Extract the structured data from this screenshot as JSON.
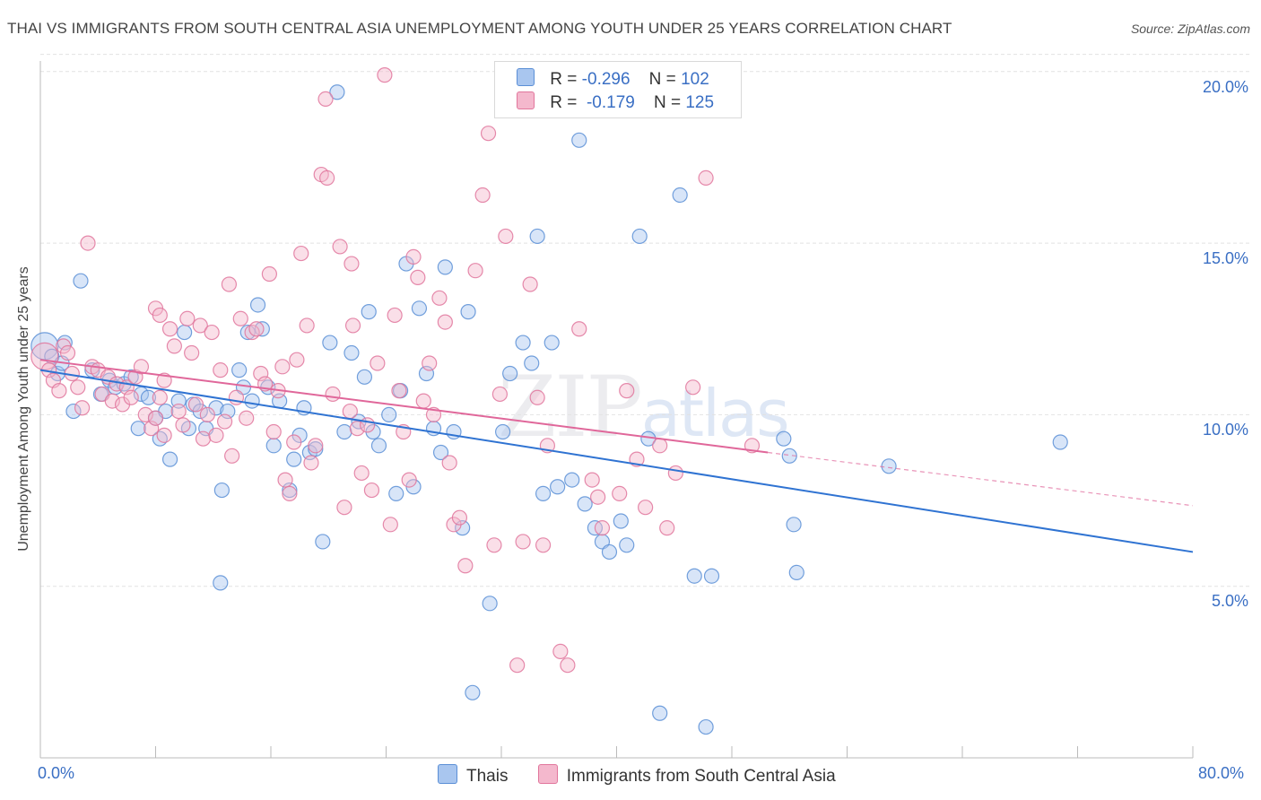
{
  "title": "THAI VS IMMIGRANTS FROM SOUTH CENTRAL ASIA UNEMPLOYMENT AMONG YOUTH UNDER 25 YEARS CORRELATION CHART",
  "source": "Source: ZipAtlas.com",
  "watermark": {
    "zip": "ZIP",
    "atlas": "atlas"
  },
  "colors": {
    "thais": "#5b8fd6",
    "thais_fill": "#a9c6ef",
    "immigrants": "#e1769c",
    "immigrants_fill": "#f4b8cd",
    "axis_text": "#3a6fc4"
  },
  "legend": {
    "rows": [
      {
        "r_label": "R =",
        "r_value": "-0.296",
        "n_label": "N =",
        "n_value": "102"
      },
      {
        "r_label": "R =",
        "r_value": "-0.179",
        "n_label": "N =",
        "n_value": "125"
      }
    ]
  },
  "bottom_legend": [
    "Thais",
    "Immigrants from South Central Asia"
  ],
  "chart_data": {
    "type": "scatter",
    "title": "THAI VS IMMIGRANTS FROM SOUTH CENTRAL ASIA UNEMPLOYMENT AMONG YOUTH UNDER 25 YEARS CORRELATION CHART",
    "xlabel": "",
    "ylabel": "Unemployment Among Youth under 25 years",
    "xlim": [
      0,
      80
    ],
    "ylim": [
      0,
      20.5
    ],
    "x_tick_labels": [
      "0.0%",
      "80.0%"
    ],
    "y_ticks": [
      5,
      10,
      15,
      20
    ],
    "y_tick_labels": [
      "5.0%",
      "10.0%",
      "15.0%",
      "20.0%"
    ],
    "grid": true,
    "series": [
      {
        "name": "Thais",
        "r": -0.296,
        "n": 102,
        "trend": {
          "x": [
            0,
            80
          ],
          "y": [
            11.3,
            6.0
          ],
          "style": "solid"
        },
        "points": [
          [
            0.3,
            12.0
          ],
          [
            0.8,
            11.7
          ],
          [
            1.2,
            11.2
          ],
          [
            1.5,
            11.5
          ],
          [
            1.7,
            12.1
          ],
          [
            2.3,
            10.1
          ],
          [
            2.8,
            13.9
          ],
          [
            3.6,
            11.3
          ],
          [
            4.2,
            10.6
          ],
          [
            4.8,
            11.0
          ],
          [
            5.2,
            10.8
          ],
          [
            5.8,
            10.9
          ],
          [
            6.3,
            11.1
          ],
          [
            6.8,
            9.6
          ],
          [
            7.0,
            10.6
          ],
          [
            7.5,
            10.5
          ],
          [
            8.0,
            9.9
          ],
          [
            8.3,
            9.3
          ],
          [
            8.7,
            10.1
          ],
          [
            9.0,
            8.7
          ],
          [
            9.6,
            10.4
          ],
          [
            10.0,
            12.4
          ],
          [
            10.3,
            9.6
          ],
          [
            10.6,
            10.3
          ],
          [
            11.1,
            10.1
          ],
          [
            11.5,
            9.6
          ],
          [
            12.2,
            10.2
          ],
          [
            12.6,
            7.8
          ],
          [
            12.5,
            5.1
          ],
          [
            13.0,
            10.1
          ],
          [
            13.8,
            11.3
          ],
          [
            14.1,
            10.8
          ],
          [
            14.4,
            12.4
          ],
          [
            14.7,
            10.4
          ],
          [
            15.1,
            13.2
          ],
          [
            15.4,
            12.5
          ],
          [
            15.8,
            10.8
          ],
          [
            16.2,
            9.1
          ],
          [
            16.6,
            10.4
          ],
          [
            17.3,
            7.8
          ],
          [
            17.6,
            8.7
          ],
          [
            18.0,
            9.4
          ],
          [
            18.3,
            10.2
          ],
          [
            18.7,
            8.9
          ],
          [
            19.1,
            9.0
          ],
          [
            19.6,
            6.3
          ],
          [
            20.1,
            12.1
          ],
          [
            20.6,
            19.4
          ],
          [
            21.1,
            9.5
          ],
          [
            21.6,
            11.8
          ],
          [
            22.1,
            9.8
          ],
          [
            22.5,
            11.1
          ],
          [
            22.8,
            13.0
          ],
          [
            23.1,
            9.5
          ],
          [
            23.5,
            9.1
          ],
          [
            24.2,
            10.0
          ],
          [
            24.7,
            7.7
          ],
          [
            25.0,
            10.7
          ],
          [
            25.4,
            14.4
          ],
          [
            25.9,
            7.9
          ],
          [
            26.3,
            13.1
          ],
          [
            26.8,
            11.2
          ],
          [
            27.3,
            9.6
          ],
          [
            27.8,
            8.9
          ],
          [
            28.1,
            14.3
          ],
          [
            28.7,
            9.5
          ],
          [
            29.3,
            6.7
          ],
          [
            29.7,
            13.0
          ],
          [
            30.0,
            1.9
          ],
          [
            31.2,
            4.5
          ],
          [
            32.1,
            9.5
          ],
          [
            32.6,
            11.2
          ],
          [
            33.5,
            12.1
          ],
          [
            34.1,
            11.5
          ],
          [
            34.5,
            15.2
          ],
          [
            34.9,
            7.7
          ],
          [
            35.5,
            12.1
          ],
          [
            35.9,
            7.9
          ],
          [
            36.9,
            8.1
          ],
          [
            37.4,
            18.0
          ],
          [
            37.8,
            7.4
          ],
          [
            38.5,
            6.7
          ],
          [
            39.0,
            6.3
          ],
          [
            39.5,
            6.0
          ],
          [
            40.3,
            6.9
          ],
          [
            40.7,
            6.2
          ],
          [
            41.6,
            15.2
          ],
          [
            42.2,
            9.3
          ],
          [
            43.0,
            1.3
          ],
          [
            44.4,
            16.4
          ],
          [
            45.4,
            5.3
          ],
          [
            46.2,
            0.9
          ],
          [
            46.6,
            5.3
          ],
          [
            51.6,
            9.3
          ],
          [
            52.0,
            8.8
          ],
          [
            52.3,
            6.8
          ],
          [
            52.5,
            5.4
          ],
          [
            58.9,
            8.5
          ],
          [
            70.8,
            9.2
          ]
        ]
      },
      {
        "name": "Immigrants from South Central Asia",
        "r": -0.179,
        "n": 125,
        "trend": {
          "x": [
            0,
            50.5
          ],
          "y": [
            11.6,
            8.9
          ],
          "style": "solid",
          "extension": {
            "x": [
              50.5,
              80
            ],
            "y": [
              8.9,
              7.35
            ],
            "style": "dashed"
          }
        },
        "points": [
          [
            0.3,
            11.7
          ],
          [
            0.6,
            11.3
          ],
          [
            0.9,
            11.0
          ],
          [
            1.3,
            10.7
          ],
          [
            1.6,
            12.0
          ],
          [
            1.9,
            11.8
          ],
          [
            2.2,
            11.2
          ],
          [
            2.6,
            10.8
          ],
          [
            2.9,
            10.2
          ],
          [
            3.3,
            15.0
          ],
          [
            3.6,
            11.4
          ],
          [
            4.0,
            11.3
          ],
          [
            4.3,
            10.6
          ],
          [
            4.7,
            11.1
          ],
          [
            5.0,
            10.4
          ],
          [
            5.3,
            10.9
          ],
          [
            5.7,
            10.3
          ],
          [
            6.0,
            10.8
          ],
          [
            6.3,
            10.5
          ],
          [
            6.6,
            11.1
          ],
          [
            7.0,
            11.4
          ],
          [
            7.3,
            10.0
          ],
          [
            7.7,
            9.6
          ],
          [
            8.0,
            9.9
          ],
          [
            8.3,
            10.5
          ],
          [
            8.6,
            9.4
          ],
          [
            8.0,
            13.1
          ],
          [
            8.3,
            12.9
          ],
          [
            8.6,
            11.0
          ],
          [
            9.0,
            12.5
          ],
          [
            9.3,
            12.0
          ],
          [
            9.6,
            10.1
          ],
          [
            9.9,
            9.7
          ],
          [
            10.2,
            12.8
          ],
          [
            10.5,
            11.8
          ],
          [
            10.8,
            10.3
          ],
          [
            11.1,
            12.6
          ],
          [
            11.3,
            9.3
          ],
          [
            11.6,
            10.0
          ],
          [
            11.9,
            12.4
          ],
          [
            12.2,
            9.4
          ],
          [
            12.5,
            11.3
          ],
          [
            12.8,
            9.8
          ],
          [
            13.1,
            13.8
          ],
          [
            13.3,
            8.8
          ],
          [
            13.6,
            10.5
          ],
          [
            13.9,
            12.8
          ],
          [
            14.3,
            9.9
          ],
          [
            14.7,
            12.4
          ],
          [
            15.0,
            12.5
          ],
          [
            15.3,
            11.2
          ],
          [
            15.6,
            10.9
          ],
          [
            15.9,
            14.1
          ],
          [
            16.2,
            9.5
          ],
          [
            16.5,
            10.7
          ],
          [
            16.8,
            11.4
          ],
          [
            17.0,
            8.1
          ],
          [
            17.3,
            7.7
          ],
          [
            17.6,
            9.2
          ],
          [
            17.8,
            11.6
          ],
          [
            18.1,
            14.7
          ],
          [
            18.5,
            12.6
          ],
          [
            18.8,
            8.6
          ],
          [
            19.1,
            9.1
          ],
          [
            19.5,
            17.0
          ],
          [
            19.9,
            16.9
          ],
          [
            20.3,
            10.6
          ],
          [
            20.8,
            14.9
          ],
          [
            21.1,
            7.3
          ],
          [
            21.5,
            10.1
          ],
          [
            21.7,
            12.6
          ],
          [
            22.0,
            9.6
          ],
          [
            22.3,
            8.3
          ],
          [
            22.7,
            9.7
          ],
          [
            23.0,
            7.8
          ],
          [
            23.4,
            11.5
          ],
          [
            23.9,
            19.9
          ],
          [
            24.3,
            6.8
          ],
          [
            24.6,
            12.9
          ],
          [
            24.9,
            10.7
          ],
          [
            25.2,
            9.5
          ],
          [
            25.6,
            8.1
          ],
          [
            25.9,
            14.6
          ],
          [
            26.2,
            14.0
          ],
          [
            26.6,
            10.4
          ],
          [
            27.0,
            11.5
          ],
          [
            27.3,
            10.0
          ],
          [
            27.7,
            13.4
          ],
          [
            28.1,
            12.7
          ],
          [
            28.4,
            8.6
          ],
          [
            28.7,
            6.8
          ],
          [
            29.1,
            7.0
          ],
          [
            29.5,
            5.6
          ],
          [
            30.2,
            14.2
          ],
          [
            30.7,
            16.4
          ],
          [
            31.1,
            18.2
          ],
          [
            31.5,
            6.2
          ],
          [
            31.9,
            10.6
          ],
          [
            32.3,
            15.2
          ],
          [
            33.1,
            2.7
          ],
          [
            33.5,
            6.3
          ],
          [
            34.0,
            13.8
          ],
          [
            34.5,
            10.5
          ],
          [
            34.9,
            6.2
          ],
          [
            35.2,
            9.1
          ],
          [
            36.1,
            3.1
          ],
          [
            36.6,
            2.7
          ],
          [
            37.4,
            12.5
          ],
          [
            38.3,
            8.1
          ],
          [
            38.7,
            7.6
          ],
          [
            39.0,
            6.7
          ],
          [
            40.2,
            7.7
          ],
          [
            40.7,
            10.7
          ],
          [
            41.4,
            8.7
          ],
          [
            42.0,
            7.3
          ],
          [
            43.0,
            9.1
          ],
          [
            43.5,
            6.7
          ],
          [
            44.1,
            8.3
          ],
          [
            45.3,
            10.8
          ],
          [
            46.2,
            16.9
          ],
          [
            49.4,
            9.1
          ],
          [
            19.8,
            19.2
          ],
          [
            21.6,
            14.4
          ]
        ]
      }
    ]
  }
}
